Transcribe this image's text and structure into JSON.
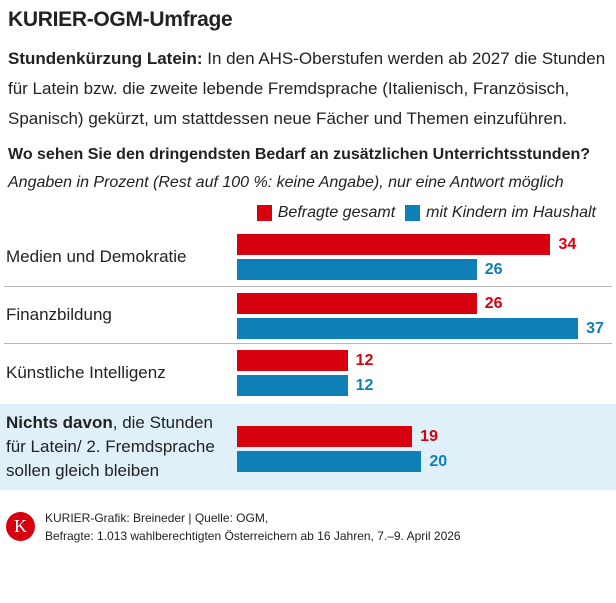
{
  "header": {
    "title": "KURIER-OGM-Umfrage"
  },
  "intro": {
    "lead": "Stundenkürzung Latein:",
    "text": " In den AHS-Oberstufen werden ab 2027 die Stunden für Latein bzw. die zweite lebende Fremdsprache (Italienisch, Französisch, Spanisch) gekürzt, um stattdessen neue Fächer und Themen einzuführen."
  },
  "chart_data": {
    "type": "bar",
    "orientation": "horizontal",
    "title": "Wo sehen Sie den dringendsten Bedarf an zusätzlichen Unterrichtsstunden?",
    "subtitle": "Angaben in Prozent (Rest auf 100 %: keine Angabe), nur eine Antwort möglich",
    "legend_placement": "top-right",
    "grid": false,
    "categories": [
      "Medien und Demokratie",
      "Finanzbildung",
      "Künstliche Intelligenz",
      "Nichts davon, die Stunden für Latein/ 2. Fremdsprache sollen gleich bleiben"
    ],
    "category_bold": [
      "",
      "",
      "",
      "Nichts davon"
    ],
    "series": [
      {
        "name": "Befragte gesamt",
        "color": "#d7000f",
        "values": [
          34,
          26,
          12,
          19
        ]
      },
      {
        "name": "mit Kindern im Haushalt",
        "color": "#0e80b7",
        "values": [
          26,
          37,
          12,
          20
        ]
      }
    ]
  },
  "footer": {
    "logo": "K",
    "credit": "KURIER-Grafik: Breineder | Quelle: OGM,",
    "sample": "Befragte: 1.013 wahlberechtigten Österreichern ab 16 Jahren, 7.–9. April 2026"
  }
}
